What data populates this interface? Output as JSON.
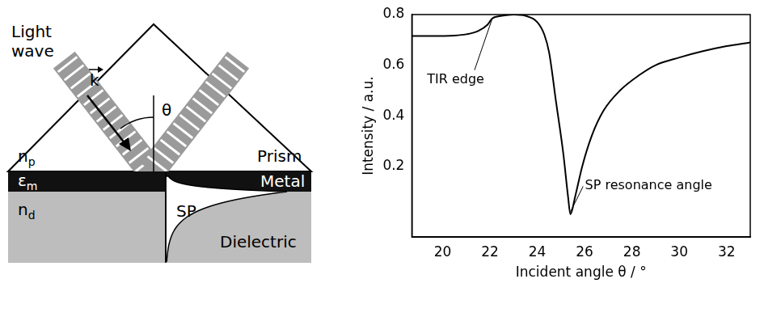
{
  "diagram": {
    "labels": {
      "light_wave": "Light wave",
      "wave_vector": "k",
      "angle": "θ",
      "prism_index": {
        "symbol": "n",
        "subscript": "p"
      },
      "prism": "Prism",
      "metal_permittivity": {
        "symbol": "ε",
        "subscript": "m"
      },
      "metal": "Metal",
      "dielectric_index": {
        "symbol": "n",
        "subscript": "d"
      },
      "surface_plasmon": "SP",
      "dielectric": "Dielectric"
    }
  },
  "chart_data": {
    "type": "line",
    "x": [
      18.7,
      19.5,
      20.5,
      21.0,
      21.5,
      21.9,
      22.1,
      22.5,
      23.0,
      23.5,
      24.0,
      24.3,
      24.5,
      24.8,
      25.1,
      25.3,
      25.4,
      25.6,
      25.9,
      26.3,
      26.8,
      27.5,
      28.3,
      29.0,
      30.0,
      31.0,
      32.0,
      33.0
    ],
    "values": [
      0.715,
      0.715,
      0.717,
      0.722,
      0.735,
      0.76,
      0.785,
      0.795,
      0.8,
      0.795,
      0.77,
      0.72,
      0.65,
      0.45,
      0.25,
      0.08,
      0.01,
      0.08,
      0.2,
      0.32,
      0.42,
      0.5,
      0.56,
      0.6,
      0.63,
      0.655,
      0.675,
      0.69
    ],
    "color": "#000000",
    "xlim": [
      18.7,
      33
    ],
    "ylim": [
      -0.08,
      0.8
    ],
    "xticks": [
      20,
      22,
      24,
      26,
      28,
      30,
      32
    ],
    "yticks": [
      0.2,
      0.4,
      0.6,
      0.8
    ],
    "x_label": "Incident angle θ / °",
    "y_label": "Intensity / a.u.",
    "grid": false,
    "annotations": [
      {
        "text": "TIR edge",
        "x": 22.1,
        "y": 0.785
      },
      {
        "text": "SP resonance angle",
        "x": 25.4,
        "y": 0.02
      }
    ]
  }
}
